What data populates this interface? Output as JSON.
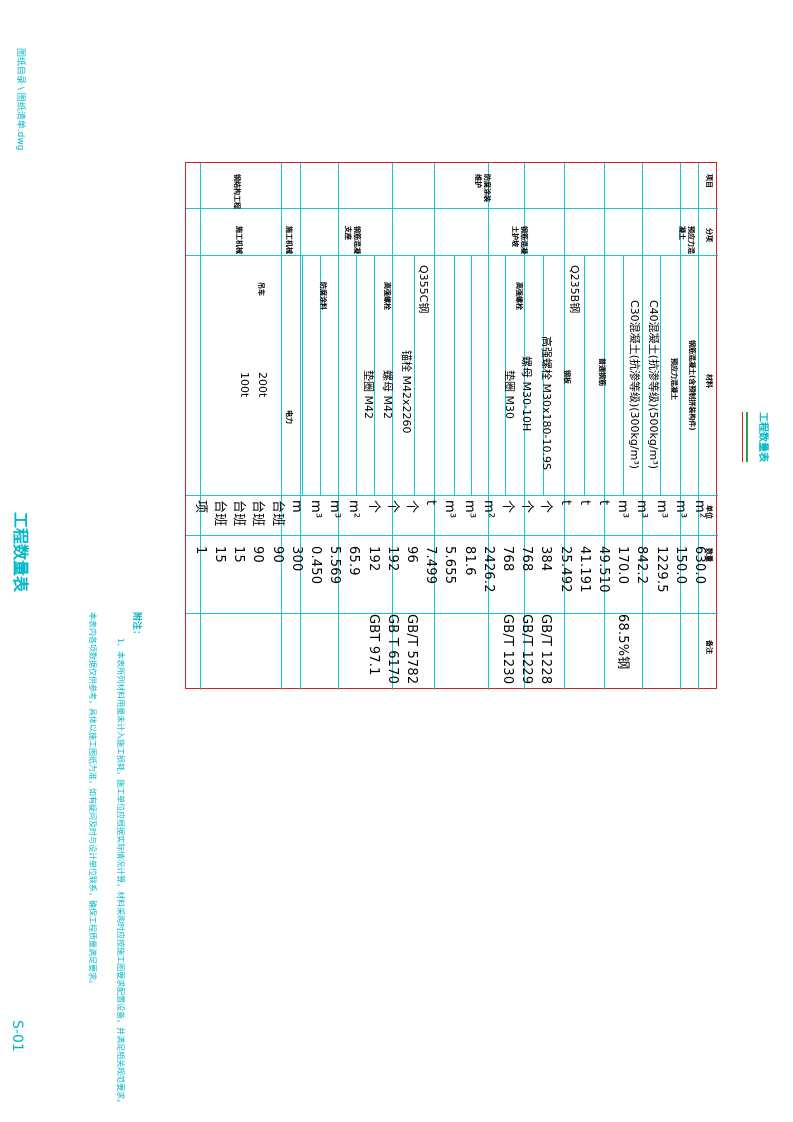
{
  "page": {
    "path_label": "图纸目录 \\ 图纸清单.dwg",
    "title_big": "工程数量表",
    "sheet_no": "S-01",
    "inner_title": "工程数量表"
  },
  "table": {
    "headers": {
      "item": "项目",
      "part": "分项",
      "material": "材料",
      "unit": "单位",
      "qty": "数量",
      "remark": "备注"
    },
    "group1": {
      "a": "预应力混",
      "b": "凝土"
    },
    "group2": {
      "a": "防腐涂装",
      "b": "维护"
    },
    "group3": {
      "a": "钢结构",
      "b": "工程"
    },
    "sub_pier": {
      "a": "墩柱",
      "b": "承台"
    },
    "sub_wood": {
      "a": "钢筋混凝",
      "b": "土护坡"
    },
    "sub_support": {
      "a": "钢筋混凝",
      "b": "支座"
    },
    "sub_tower": "施工机械",
    "sub_crane": "吊车",
    "sub_tools": "施工措施",
    "sub_transport": "运输车",
    "sub_boat": "施工船",
    "sub_big": "施工机械",
    "cat_plate": "钢板",
    "cat_steel": "型钢",
    "cat_Q235": "Q235B钢",
    "cat_Q355": "Q355C钢",
    "cat_bolt": "高强螺栓",
    "cat_anchor": "锚栓",
    "cat_paint": "防腐涂料",
    "cat_misc": "其他",
    "cat_crane200": "200t",
    "cat_crane100": "100t",
    "cat_mach": "机械",
    "cat_install": "安装船舶",
    "cat_power": "电力",
    "cat_maint": "其他辅助工程",
    "cat_equip": "设备",
    "rows": [
      {
        "material": "钢筋混凝土(含预制拼装构件)",
        "unit": "m²",
        "qty": "630.0",
        "remark": ""
      },
      {
        "material": "预应力混凝土",
        "unit": "m³",
        "qty": "150.0",
        "remark": ""
      },
      {
        "material": "C40混凝土(抗渗等级)(500kg/m³)",
        "unit": "m³",
        "qty": "1229.5",
        "remark": ""
      },
      {
        "material": "C30混凝土(抗渗等级)(300kg/m³)",
        "unit": "m³",
        "qty": "842.2",
        "remark": ""
      },
      {
        "material": "普通钢筋",
        "unit": "m³",
        "qty": "170.0",
        "remark": "68.5%钢"
      },
      {
        "material": "",
        "unit": "t",
        "qty": "49.510",
        "remark": ""
      },
      {
        "material": "钢板",
        "unit": "t",
        "qty": "41.191",
        "remark": ""
      },
      {
        "material": "高强螺栓 M30x180-10.9S",
        "unit": "t",
        "qty": "25.492",
        "remark": ""
      },
      {
        "material": "螺母 M30-10H",
        "unit": "个",
        "qty": "384",
        "remark": "GB/T 1228"
      },
      {
        "material": "垫圈 M30",
        "unit": "个",
        "qty": "768",
        "remark": "GB/T 1229"
      },
      {
        "material": "",
        "unit": "个",
        "qty": "768",
        "remark": "GB/T 1230"
      },
      {
        "material": "",
        "unit": "m²",
        "qty": "2426.2",
        "remark": ""
      },
      {
        "material": "",
        "unit": "m³",
        "qty": "81.6",
        "remark": ""
      },
      {
        "material": "",
        "unit": "m³",
        "qty": "5.655",
        "remark": ""
      },
      {
        "material": "锚栓 M42x2260",
        "unit": "t",
        "qty": "7.499",
        "remark": ""
      },
      {
        "material": "螺母 M42",
        "unit": "个",
        "qty": "96",
        "remark": "GB/T 5782"
      },
      {
        "material": "垫圈 M42",
        "unit": "个",
        "qty": "192",
        "remark": "GB T 6170"
      },
      {
        "material": "",
        "unit": "个",
        "qty": "192",
        "remark": "GBT 97.1"
      },
      {
        "material": "",
        "unit": "m²",
        "qty": "65.9",
        "remark": ""
      },
      {
        "material": "",
        "unit": "m³",
        "qty": "5.569",
        "remark": ""
      },
      {
        "material": "",
        "unit": "m³",
        "qty": "0.450",
        "remark": ""
      },
      {
        "material": "",
        "unit": "m",
        "qty": "300",
        "remark": ""
      },
      {
        "material": "",
        "unit": "台班",
        "qty": "90",
        "remark": ""
      },
      {
        "material": "",
        "unit": "台班",
        "qty": "90",
        "remark": ""
      },
      {
        "material": "",
        "unit": "台班",
        "qty": "15",
        "remark": ""
      },
      {
        "material": "",
        "unit": "台班",
        "qty": "15",
        "remark": ""
      },
      {
        "material": "",
        "unit": "项",
        "qty": "1",
        "remark": ""
      }
    ]
  },
  "notes": {
    "title": "附注：",
    "line1": "1、本表所列材料用量未计入施工损耗，施工单位应根据实际情况计算，材料采购时应按施工图要求配置设备，并满足相关规范要求。",
    "line2": "本表内各项数据仅供参考，具体以施工图纸为准，如有疑问及时与设计单位联系，确保工程质量满足要求。"
  },
  "colors": {
    "cyan": "#00b8c8",
    "grid": "#19c4d4",
    "frame": "#d42020"
  }
}
